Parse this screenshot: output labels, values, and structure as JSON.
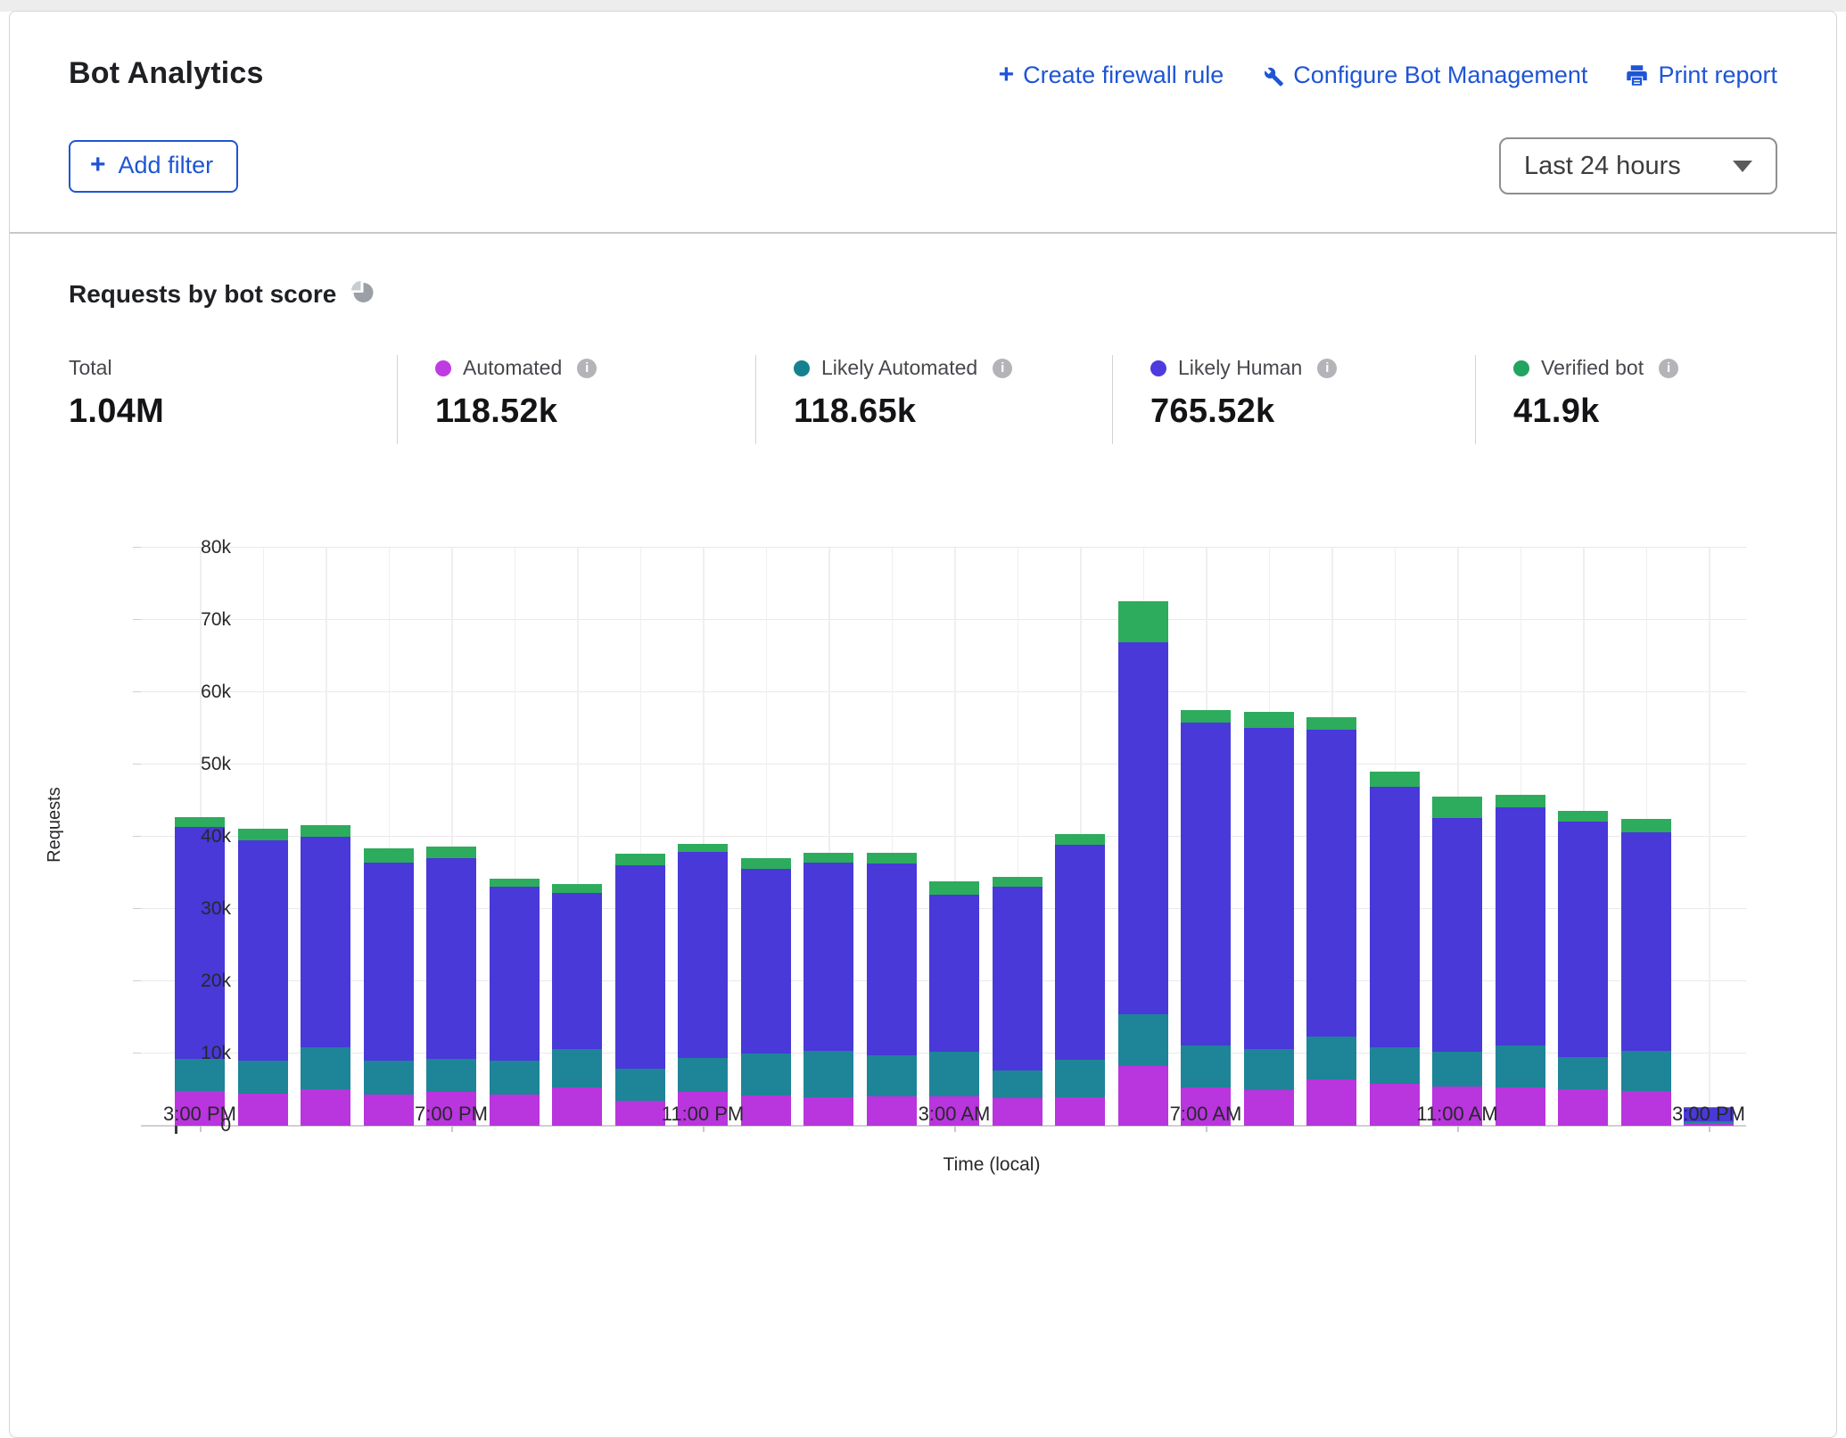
{
  "header": {
    "title": "Bot Analytics",
    "actions": [
      {
        "label": "Create firewall rule",
        "icon": "plus-icon"
      },
      {
        "label": "Configure Bot Management",
        "icon": "wrench-icon"
      },
      {
        "label": "Print report",
        "icon": "printer-icon"
      }
    ],
    "add_filter_label": "Add filter",
    "time_range_value": "Last 24 hours"
  },
  "section": {
    "title": "Requests by bot score",
    "stats": [
      {
        "label": "Total",
        "value": "1.04M",
        "dot_color": "",
        "has_info": false
      },
      {
        "label": "Automated",
        "value": "118.52k",
        "dot_color": "#bf3be2",
        "has_info": true
      },
      {
        "label": "Likely Automated",
        "value": "118.65k",
        "dot_color": "#15818f",
        "has_info": true
      },
      {
        "label": "Likely Human",
        "value": "765.52k",
        "dot_color": "#4d3be0",
        "has_info": true
      },
      {
        "label": "Verified bot",
        "value": "41.9k",
        "dot_color": "#20a45f",
        "has_info": true
      }
    ]
  },
  "chart_data": {
    "type": "bar",
    "stacked": true,
    "title": "Requests by bot score",
    "xlabel": "Time (local)",
    "ylabel": "Requests",
    "ylim": [
      0,
      80000
    ],
    "grid": true,
    "legend_position": "stats-row-above-chart",
    "ytick_values": [
      0,
      10000,
      20000,
      30000,
      40000,
      50000,
      60000,
      70000,
      80000
    ],
    "ytick_labels": [
      "0",
      "10k",
      "20k",
      "30k",
      "40k",
      "50k",
      "60k",
      "70k",
      "80k"
    ],
    "xtick_labels": [
      "3:00 PM",
      "7:00 PM",
      "11:00 PM",
      "3:00 AM",
      "7:00 AM",
      "11:00 AM",
      "3:00 PM"
    ],
    "xtick_bar_indexes": [
      0,
      4,
      8,
      12,
      16,
      20,
      24
    ],
    "bars_are_hours": true,
    "series": [
      {
        "name": "Automated",
        "color": "#b935dd",
        "values": [
          4700,
          4400,
          5000,
          4200,
          4600,
          4300,
          5300,
          3400,
          4600,
          4100,
          3900,
          4000,
          4000,
          3800,
          3900,
          8200,
          5200,
          4900,
          6300,
          5700,
          5400,
          5300,
          5000,
          4800,
          300
        ]
      },
      {
        "name": "Likely Automated",
        "color": "#1e8498",
        "values": [
          4500,
          4500,
          5800,
          4700,
          4600,
          4700,
          5300,
          4400,
          4700,
          5900,
          6400,
          5700,
          6200,
          3800,
          5200,
          7200,
          5800,
          5700,
          6000,
          5100,
          4800,
          5800,
          4400,
          5500,
          300
        ]
      },
      {
        "name": "Likely Human",
        "color": "#4839d8",
        "values": [
          32100,
          30600,
          29200,
          27500,
          27800,
          24000,
          21600,
          28200,
          28500,
          25500,
          26100,
          26500,
          21700,
          25400,
          29700,
          51400,
          44700,
          44400,
          42400,
          36100,
          32300,
          32900,
          32600,
          30300,
          1800
        ]
      },
      {
        "name": "Verified bot",
        "color": "#2dac5d",
        "values": [
          1300,
          1500,
          1600,
          1900,
          1600,
          1200,
          1200,
          1600,
          1200,
          1500,
          1300,
          1500,
          1900,
          1400,
          1500,
          5700,
          1800,
          2200,
          1800,
          2000,
          3000,
          1800,
          1500,
          1800,
          100
        ]
      }
    ]
  }
}
